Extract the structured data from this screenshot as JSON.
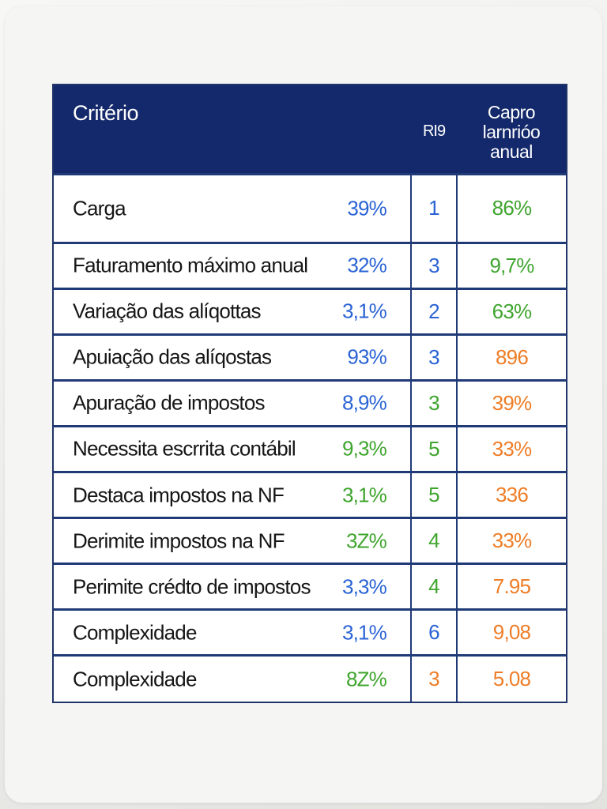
{
  "table": {
    "headers": {
      "criterio": "Critério",
      "rig": "RI9",
      "capro_line1": "Capro",
      "capro_line2": "larnrióo",
      "capro_line3": "anual"
    },
    "colors": {
      "header_bg": "#14296b",
      "blue": "#2a63d4",
      "green": "#3fa52e",
      "orange": "#ee7d27"
    },
    "rows": [
      {
        "label": "Carga",
        "pct": "39%",
        "pct_color": "blue",
        "rig": "1",
        "rig_color": "blue",
        "capro": "86%",
        "capro_color": "green"
      },
      {
        "label": "Faturamento máximo anual",
        "pct": "32%",
        "pct_color": "blue",
        "rig": "3",
        "rig_color": "blue",
        "capro": "9,7%",
        "capro_color": "green"
      },
      {
        "label": "Variação das alíqottas",
        "pct": "3,1%",
        "pct_color": "blue",
        "rig": "2",
        "rig_color": "blue",
        "capro": "63%",
        "capro_color": "green"
      },
      {
        "label": "Apuiação das alíqostas",
        "pct": "93%",
        "pct_color": "blue",
        "rig": "3",
        "rig_color": "blue",
        "capro": "896",
        "capro_color": "orange"
      },
      {
        "label": "Apuração de impostos",
        "pct": "8,9%",
        "pct_color": "blue",
        "rig": "3",
        "rig_color": "green",
        "capro": "39%",
        "capro_color": "orange"
      },
      {
        "label": "Necessita escrrita contábil",
        "pct": "9,3%",
        "pct_color": "green",
        "rig": "5",
        "rig_color": "green",
        "capro": "33%",
        "capro_color": "orange"
      },
      {
        "label": "Destaca impostos na NF",
        "pct": "3,1%",
        "pct_color": "green",
        "rig": "5",
        "rig_color": "green",
        "capro": "336",
        "capro_color": "orange"
      },
      {
        "label": "Derimite impostos na NF",
        "pct": "3Z%",
        "pct_color": "green",
        "rig": "4",
        "rig_color": "green",
        "capro": "33%",
        "capro_color": "orange"
      },
      {
        "label": "Perimite crédto de impostos",
        "pct": "3,3%",
        "pct_color": "blue",
        "rig": "4",
        "rig_color": "green",
        "capro": "7.95",
        "capro_color": "orange"
      },
      {
        "label": "Complexidade",
        "pct": "3,1%",
        "pct_color": "blue",
        "rig": "6",
        "rig_color": "blue",
        "capro": "9,08",
        "capro_color": "orange"
      },
      {
        "label": "Complexidade",
        "pct": "8Z%",
        "pct_color": "green",
        "rig": "3",
        "rig_color": "orange",
        "capro": "5.08",
        "capro_color": "orange"
      }
    ]
  }
}
